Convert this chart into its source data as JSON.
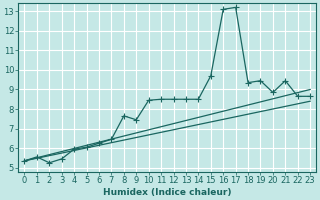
{
  "xlabel": "Humidex (Indice chaleur)",
  "ylabel": "",
  "bg_color": "#c5e8e6",
  "grid_color": "#ffffff",
  "line_color": "#1a6660",
  "xlim": [
    -0.5,
    23.5
  ],
  "ylim": [
    4.8,
    13.4
  ],
  "yticks": [
    5,
    6,
    7,
    8,
    9,
    10,
    11,
    12,
    13
  ],
  "xticks": [
    0,
    1,
    2,
    3,
    4,
    5,
    6,
    7,
    8,
    9,
    10,
    11,
    12,
    13,
    14,
    15,
    16,
    17,
    18,
    19,
    20,
    21,
    22,
    23
  ],
  "series1_x": [
    0,
    1,
    2,
    3,
    4,
    5,
    6,
    7,
    8,
    9,
    10,
    11,
    12,
    13,
    14,
    15,
    16,
    17,
    18,
    19,
    20,
    21,
    22,
    23
  ],
  "series1_y": [
    5.35,
    5.55,
    5.25,
    5.45,
    5.95,
    6.05,
    6.25,
    6.45,
    7.65,
    7.45,
    8.45,
    8.5,
    8.5,
    8.5,
    8.5,
    9.7,
    13.1,
    13.2,
    9.35,
    9.45,
    8.85,
    9.45,
    8.65,
    8.65
  ],
  "series2_x": [
    0,
    23
  ],
  "series2_y": [
    5.35,
    8.4
  ],
  "series3_x": [
    0,
    23
  ],
  "series3_y": [
    5.35,
    9.0
  ],
  "marker": "+",
  "markersize": 4,
  "linewidth": 0.9,
  "font_size": 6.5
}
